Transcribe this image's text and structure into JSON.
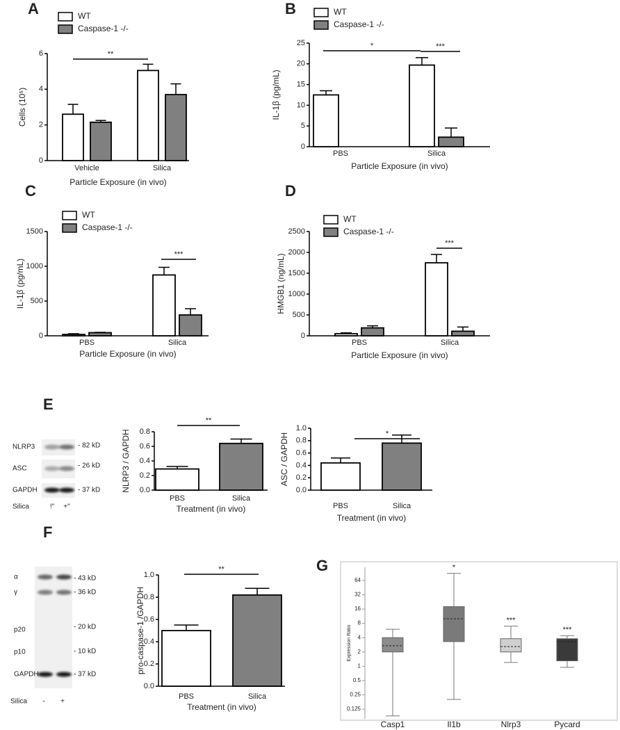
{
  "chart_data": [
    {
      "type": "bar",
      "panel": "A",
      "ylabel": "Cells (10⁵)",
      "xlabel": "Particle Exposure (in vivo)",
      "categories": [
        "Vehicle",
        "Silica"
      ],
      "series": [
        {
          "name": "WT",
          "color": "#ffffff",
          "values": [
            2.6,
            5.05
          ],
          "errors": [
            0.55,
            0.35
          ]
        },
        {
          "name": "Caspase-1 -/-",
          "color": "#808080",
          "values": [
            2.15,
            3.7
          ],
          "errors": [
            0.1,
            0.6
          ]
        }
      ],
      "ylim": [
        0,
        6
      ],
      "yticks": [
        0,
        2,
        4,
        6
      ],
      "annotations": [
        "**"
      ]
    },
    {
      "type": "bar",
      "panel": "B",
      "ylabel": "IL-1β (pg/mL)",
      "xlabel": "Particle Exposure (in vivo)",
      "categories": [
        "PBS",
        "Silica"
      ],
      "series": [
        {
          "name": "WT",
          "color": "#ffffff",
          "values": [
            12.5,
            19.7
          ],
          "errors": [
            1,
            1.8
          ]
        },
        {
          "name": "Caspase-1 -/-",
          "color": "#808080",
          "values": [
            0,
            2.3
          ],
          "errors": [
            0,
            2.2
          ]
        }
      ],
      "ylim": [
        0,
        25
      ],
      "yticks": [
        0,
        5,
        10,
        15,
        20,
        25
      ],
      "annotations": [
        "*",
        "***"
      ]
    },
    {
      "type": "bar",
      "panel": "C",
      "ylabel": "IL-1β (pg/mL)",
      "xlabel": "Particle Exposure (in vivo)",
      "categories": [
        "PBS",
        "Silica"
      ],
      "series": [
        {
          "name": "WT",
          "color": "#ffffff",
          "values": [
            20,
            875
          ],
          "errors": [
            10,
            110
          ]
        },
        {
          "name": "Caspase-1 -/-",
          "color": "#808080",
          "values": [
            45,
            300
          ],
          "errors": [
            5,
            90
          ]
        }
      ],
      "ylim": [
        0,
        1500
      ],
      "yticks": [
        0,
        500,
        1000,
        1500
      ],
      "annotations": [
        "***"
      ]
    },
    {
      "type": "bar",
      "panel": "D",
      "ylabel": "HMGB1 (ng/mL)",
      "xlabel": "Particle Exposure (in vivo)",
      "categories": [
        "PBS",
        "Silica"
      ],
      "series": [
        {
          "name": "WT",
          "color": "#ffffff",
          "values": [
            50,
            1750
          ],
          "errors": [
            20,
            200
          ]
        },
        {
          "name": "Caspase-1 -/-",
          "color": "#808080",
          "values": [
            190,
            110
          ],
          "errors": [
            50,
            100
          ]
        }
      ],
      "ylim": [
        0,
        2500
      ],
      "yticks": [
        0,
        500,
        1000,
        1500,
        2000,
        2500
      ],
      "annotations": [
        "***"
      ]
    },
    {
      "type": "bar",
      "ylabel": "NLRP3 / GAPDH",
      "xlabel": "Treatment (in vivo)",
      "categories": [
        "PBS",
        "Silica"
      ],
      "values": [
        0.29,
        0.64
      ],
      "errors": [
        0.035,
        0.06
      ],
      "colors": [
        "#ffffff",
        "#808080"
      ],
      "ylim": [
        0,
        0.8
      ],
      "yticks": [
        {
          "value": 0,
          "label": "0.0"
        },
        0.2,
        0.4,
        0.6,
        0.8
      ],
      "annotations": [
        "**"
      ]
    },
    {
      "type": "bar",
      "ylabel": "ASC / GAPDH",
      "xlabel": "Treatment (in vivo)",
      "categories": [
        "PBS",
        "Silica"
      ],
      "values": [
        0.44,
        0.76
      ],
      "errors": [
        0.08,
        0.13
      ],
      "colors": [
        "#ffffff",
        "#808080"
      ],
      "ylim": [
        0,
        1
      ],
      "yticks": [
        {
          "value": 0,
          "label": "0.0"
        },
        0.2,
        0.4,
        0.6,
        0.8,
        {
          "value": 1,
          "label": "1.0"
        }
      ],
      "annotations": [
        "*"
      ]
    },
    {
      "type": "bar",
      "ylabel": "pro-caspase-1 /GAPDH",
      "xlabel": "Treatment (in vivo)",
      "categories": [
        "PBS",
        "Silica"
      ],
      "values": [
        0.5,
        0.82
      ],
      "errors": [
        0.05,
        0.06
      ],
      "colors": [
        "#ffffff",
        "#808080"
      ],
      "ylim": [
        0,
        1
      ],
      "yticks": [
        {
          "value": 0,
          "label": "0.0"
        },
        0.2,
        0.4,
        0.6,
        0.8,
        {
          "value": 1,
          "label": "1.0"
        }
      ],
      "annotations": [
        "**"
      ]
    },
    {
      "type": "box",
      "panel": "G",
      "ylabel": "Expression Ratio",
      "categories": [
        "Casp1",
        "Il1b",
        "Nlrp3",
        "Pycard"
      ],
      "colors": [
        "#8c8c8c",
        "#7a7a7a",
        "#cfcfcf",
        "#3a3a3a"
      ],
      "min": [
        0.09,
        0.2,
        1.2,
        0.95
      ],
      "q1": [
        2,
        3.3,
        2,
        1.3
      ],
      "median": [
        2.7,
        10,
        2.6,
        3.3
      ],
      "q3": [
        4,
        18,
        3.8,
        3.8
      ],
      "max": [
        6,
        90,
        7,
        4.4
      ],
      "significance": [
        null,
        "*",
        "***",
        "***"
      ],
      "log_scale": true,
      "ylim": [
        0.078,
        121
      ],
      "yticks": [
        0.125,
        0.25,
        0.5,
        1,
        2,
        4,
        8,
        16,
        32,
        64
      ]
    }
  ],
  "blots": [
    {
      "panel": "E",
      "treatment": "Silica",
      "lanes": [
        "!\"",
        "+\""
      ],
      "rows": [
        {
          "label": "NLRP3",
          "size": "- 82 kD"
        },
        {
          "label": "ASC",
          "size": "- 26 kD"
        },
        {
          "label": "GAPDH",
          "size": "- 37 kD"
        }
      ]
    },
    {
      "panel": "F",
      "treatment": "Silica",
      "lanes": [
        "-",
        "+"
      ],
      "rows": [
        {
          "label": "α",
          "size": "- 43 kD"
        },
        {
          "label": "γ",
          "size": "- 36 kD"
        },
        {
          "label": "p20",
          "size": "- 20 kD"
        },
        {
          "label": "p10",
          "size": "- 10 kD"
        },
        {
          "label": "GAPDH",
          "size": "- 37 kD"
        }
      ]
    }
  ]
}
